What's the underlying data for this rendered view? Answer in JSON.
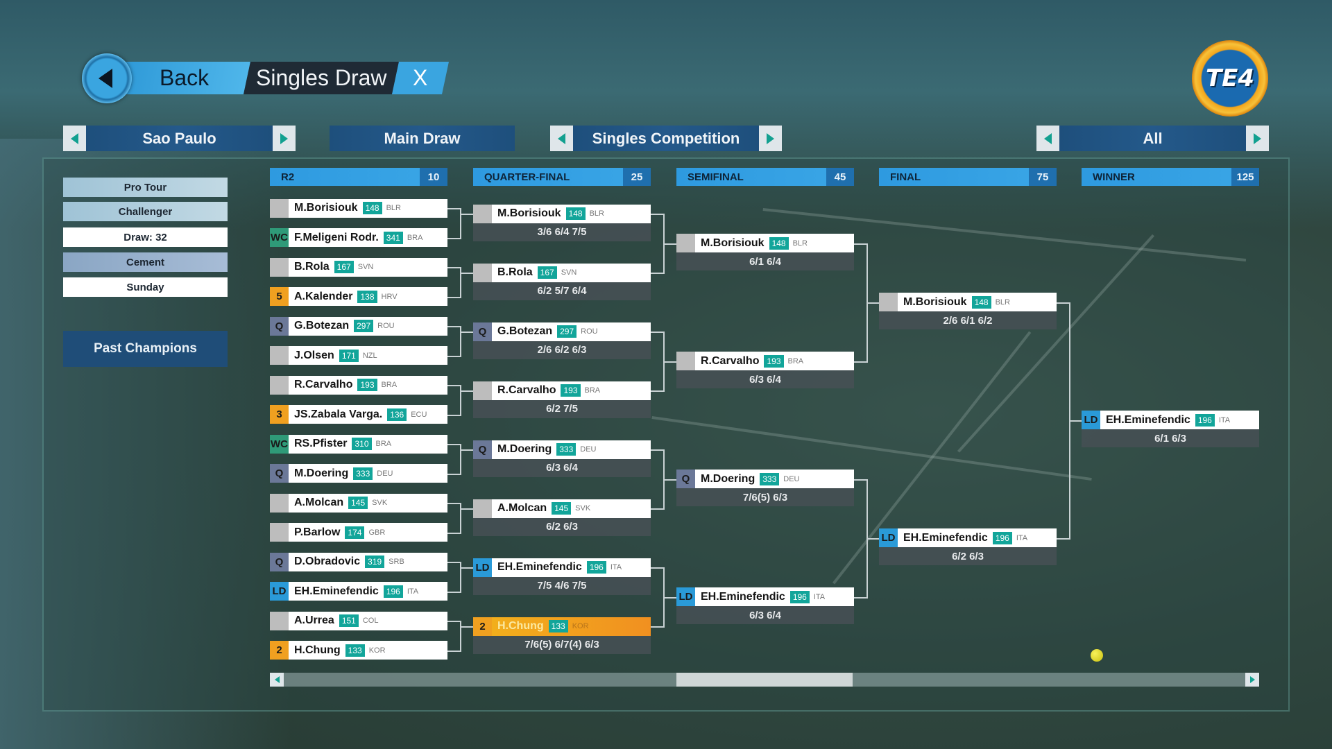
{
  "header": {
    "back_label": "Back",
    "title": "Singles Draw",
    "close_label": "X",
    "logo_text": "TE4"
  },
  "selectors": {
    "tournament": "Sao Paulo",
    "draw_type": "Main Draw",
    "competition": "Singles Competition",
    "filter": "All"
  },
  "sidebar": {
    "items": [
      "Pro Tour",
      "Challenger",
      "Draw: 32",
      "Cement",
      "Sunday"
    ],
    "past_champions_label": "Past Champions"
  },
  "colors": {
    "accent_blue": "#2e9ae0",
    "rank_badge": "#12a59a",
    "tag_wc": "#2f9a78",
    "tag_q": "#6b7898",
    "tag_ld": "#2a9ad8",
    "tag_seed": "#f0a020",
    "tag_none": "#bdbdbd",
    "highlight": "#f19a20"
  },
  "rounds": [
    {
      "name": "R2",
      "points": "10",
      "entries": [
        {
          "tag": "",
          "name": "M.Borisiouk",
          "rank": "148",
          "country": "BLR"
        },
        {
          "tag": "WC",
          "name": "F.Meligeni Rodr.",
          "rank": "341",
          "country": "BRA"
        },
        {
          "tag": "",
          "name": "B.Rola",
          "rank": "167",
          "country": "SVN"
        },
        {
          "tag": "5",
          "name": "A.Kalender",
          "rank": "138",
          "country": "HRV"
        },
        {
          "tag": "Q",
          "name": "G.Botezan",
          "rank": "297",
          "country": "ROU"
        },
        {
          "tag": "",
          "name": "J.Olsen",
          "rank": "171",
          "country": "NZL"
        },
        {
          "tag": "",
          "name": "R.Carvalho",
          "rank": "193",
          "country": "BRA"
        },
        {
          "tag": "3",
          "name": "JS.Zabala Varga.",
          "rank": "136",
          "country": "ECU"
        },
        {
          "tag": "WC",
          "name": "RS.Pfister",
          "rank": "310",
          "country": "BRA"
        },
        {
          "tag": "Q",
          "name": "M.Doering",
          "rank": "333",
          "country": "DEU"
        },
        {
          "tag": "",
          "name": "A.Molcan",
          "rank": "145",
          "country": "SVK"
        },
        {
          "tag": "",
          "name": "P.Barlow",
          "rank": "174",
          "country": "GBR"
        },
        {
          "tag": "Q",
          "name": "D.Obradovic",
          "rank": "319",
          "country": "SRB"
        },
        {
          "tag": "LD",
          "name": "EH.Eminefendic",
          "rank": "196",
          "country": "ITA"
        },
        {
          "tag": "",
          "name": "A.Urrea",
          "rank": "151",
          "country": "COL"
        },
        {
          "tag": "2",
          "name": "H.Chung",
          "rank": "133",
          "country": "KOR"
        }
      ]
    },
    {
      "name": "QUARTER-FINAL",
      "points": "25",
      "entries": [
        {
          "tag": "",
          "name": "M.Borisiouk",
          "rank": "148",
          "country": "BLR",
          "score": "3/6 6/4 7/5"
        },
        {
          "tag": "",
          "name": "B.Rola",
          "rank": "167",
          "country": "SVN",
          "score": "6/2 5/7 6/4"
        },
        {
          "tag": "Q",
          "name": "G.Botezan",
          "rank": "297",
          "country": "ROU",
          "score": "2/6 6/2 6/3"
        },
        {
          "tag": "",
          "name": "R.Carvalho",
          "rank": "193",
          "country": "BRA",
          "score": "6/2 7/5"
        },
        {
          "tag": "Q",
          "name": "M.Doering",
          "rank": "333",
          "country": "DEU",
          "score": "6/3 6/4"
        },
        {
          "tag": "",
          "name": "A.Molcan",
          "rank": "145",
          "country": "SVK",
          "score": "6/2 6/3"
        },
        {
          "tag": "LD",
          "name": "EH.Eminefendic",
          "rank": "196",
          "country": "ITA",
          "score": "7/5 4/6 7/5"
        },
        {
          "tag": "2",
          "name": "H.Chung",
          "rank": "133",
          "country": "KOR",
          "score": "7/6(5) 6/7(4) 6/3",
          "highlighted": true
        }
      ]
    },
    {
      "name": "SEMIFINAL",
      "points": "45",
      "entries": [
        {
          "tag": "",
          "name": "M.Borisiouk",
          "rank": "148",
          "country": "BLR",
          "score": "6/1 6/4"
        },
        {
          "tag": "",
          "name": "R.Carvalho",
          "rank": "193",
          "country": "BRA",
          "score": "6/3 6/4"
        },
        {
          "tag": "Q",
          "name": "M.Doering",
          "rank": "333",
          "country": "DEU",
          "score": "7/6(5) 6/3"
        },
        {
          "tag": "LD",
          "name": "EH.Eminefendic",
          "rank": "196",
          "country": "ITA",
          "score": "6/3 6/4"
        }
      ]
    },
    {
      "name": "FINAL",
      "points": "75",
      "entries": [
        {
          "tag": "",
          "name": "M.Borisiouk",
          "rank": "148",
          "country": "BLR",
          "score": "2/6 6/1 6/2"
        },
        {
          "tag": "LD",
          "name": "EH.Eminefendic",
          "rank": "196",
          "country": "ITA",
          "score": "6/2 6/3"
        }
      ]
    },
    {
      "name": "WINNER",
      "points": "125",
      "entries": [
        {
          "tag": "LD",
          "name": "EH.Eminefendic",
          "rank": "196",
          "country": "ITA",
          "score": "6/1 6/3"
        }
      ]
    }
  ]
}
